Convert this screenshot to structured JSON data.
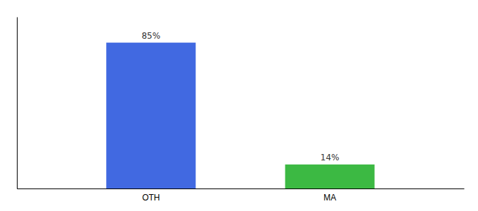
{
  "chart_data": {
    "type": "bar",
    "categories": [
      "OTH",
      "MA"
    ],
    "values": [
      85,
      14
    ],
    "colors": [
      "#4169E1",
      "#3CB943"
    ],
    "value_labels": [
      "85%",
      "14%"
    ],
    "data_labels": true,
    "ylim": [
      0,
      100
    ],
    "tick_labels": "x",
    "grid": false
  }
}
